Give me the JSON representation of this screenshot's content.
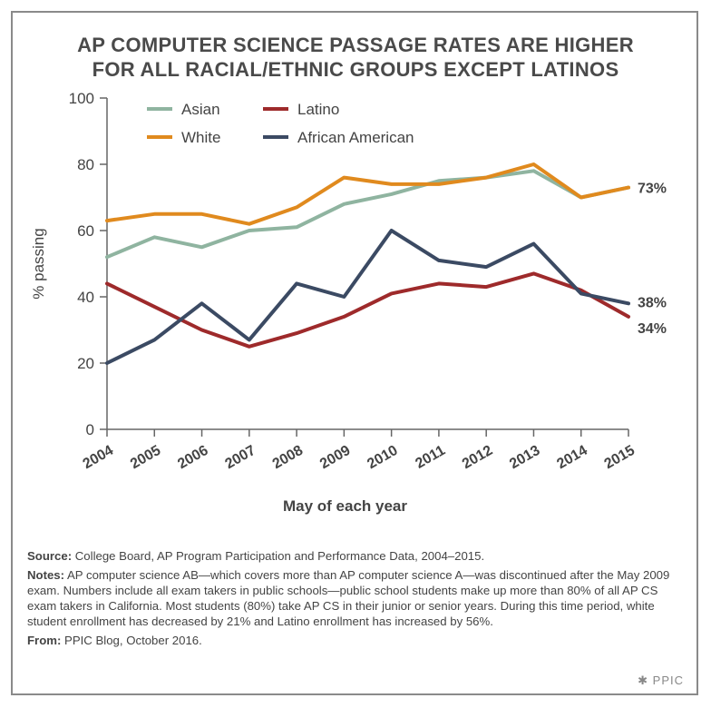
{
  "title_line1": "AP COMPUTER SCIENCE PASSAGE RATES ARE HIGHER",
  "title_line2": "FOR ALL RACIAL/ETHNIC GROUPS EXCEPT LATINOS",
  "chart_data": {
    "type": "line",
    "title": "AP COMPUTER SCIENCE PASSAGE RATES ARE HIGHER FOR ALL RACIAL/ETHNIC GROUPS EXCEPT LATINOS",
    "xlabel": "May of each year",
    "ylabel": "% passing",
    "x": [
      "2004",
      "2005",
      "2006",
      "2007",
      "2008",
      "2009",
      "2010",
      "2011",
      "2012",
      "2013",
      "2014",
      "2015"
    ],
    "ylim": [
      0,
      100
    ],
    "yticks": [
      0,
      20,
      40,
      60,
      80,
      100
    ],
    "legend_position": "top-left",
    "series": [
      {
        "name": "Asian",
        "color": "#8fb4a0",
        "values": [
          52,
          58,
          55,
          60,
          61,
          68,
          71,
          75,
          76,
          78,
          70,
          73
        ],
        "end_label": "73%"
      },
      {
        "name": "White",
        "color": "#e08a1e",
        "values": [
          63,
          65,
          65,
          62,
          67,
          76,
          74,
          74,
          76,
          80,
          70,
          73
        ],
        "end_label": ""
      },
      {
        "name": "Latino",
        "color": "#9e2a2b",
        "values": [
          44,
          37,
          30,
          25,
          29,
          34,
          41,
          44,
          43,
          47,
          42,
          34
        ],
        "end_label": "34%"
      },
      {
        "name": "African American",
        "color": "#3b4a63",
        "values": [
          20,
          27,
          38,
          27,
          44,
          40,
          60,
          51,
          49,
          56,
          41,
          38
        ],
        "end_label": "38%"
      }
    ]
  },
  "notes": {
    "source_label": "Source:",
    "source_text": "College Board, AP Program Participation and Performance Data, 2004–2015.",
    "notes_label": "Notes:",
    "notes_text": "AP computer science AB—which covers more than AP computer science A—was discontinued after the May 2009 exam. Numbers include all exam takers in public schools—public school students make up more than 80% of all AP CS exam takers in California. Most students (80%) take AP CS in their junior or senior years. During this time period, white student enrollment has decreased by 21% and Latino enrollment has increased by 56%.",
    "from_label": "From:",
    "from_text": "PPIC Blog, October 2016."
  },
  "brand": "PPIC"
}
